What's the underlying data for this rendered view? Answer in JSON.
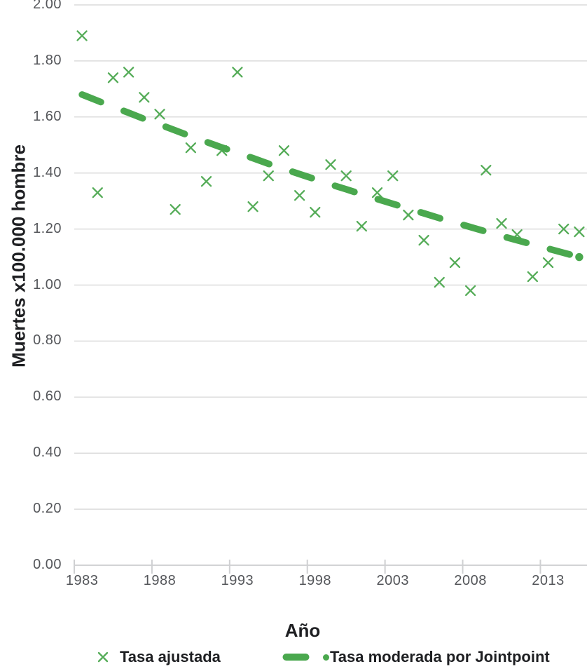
{
  "chart_data": {
    "type": "scatter",
    "title": "",
    "xlabel": "Año",
    "ylabel": "Muertes x100.000 hombre",
    "x": [
      1983,
      1984,
      1985,
      1986,
      1987,
      1988,
      1989,
      1990,
      1991,
      1992,
      1993,
      1994,
      1995,
      1996,
      1997,
      1998,
      1999,
      2000,
      2001,
      2002,
      2003,
      2004,
      2005,
      2006,
      2007,
      2008,
      2009,
      2010,
      2011,
      2012,
      2013,
      2014,
      2015
    ],
    "series": [
      {
        "name": "Tasa ajustada",
        "style": "x-marker",
        "values": [
          1.89,
          1.33,
          1.74,
          1.76,
          1.67,
          1.61,
          1.27,
          1.49,
          1.37,
          1.48,
          1.76,
          1.28,
          1.39,
          1.48,
          1.32,
          1.26,
          1.43,
          1.39,
          1.21,
          1.33,
          1.39,
          1.25,
          1.16,
          1.01,
          1.08,
          0.98,
          1.41,
          1.22,
          1.18,
          1.03,
          1.08,
          1.2,
          1.19
        ]
      },
      {
        "name": "Tasa moderada por Jointpoint",
        "style": "dashed-line-with-end-dot",
        "values": [
          1.68,
          1.658,
          1.636,
          1.615,
          1.593,
          1.573,
          1.552,
          1.531,
          1.511,
          1.491,
          1.472,
          1.453,
          1.433,
          1.415,
          1.396,
          1.378,
          1.359,
          1.342,
          1.324,
          1.307,
          1.29,
          1.273,
          1.256,
          1.239,
          1.223,
          1.207,
          1.191,
          1.175,
          1.16,
          1.145,
          1.13,
          1.115,
          1.1
        ]
      }
    ],
    "ylim": [
      0.0,
      2.0
    ],
    "ytick_labels": [
      "2.00",
      "1.80",
      "1.60",
      "1.40",
      "1.20",
      "1.00",
      "0.80",
      "0.60",
      "0.40",
      "0.20",
      "0.00"
    ],
    "xtick_years": [
      1983,
      1988,
      1993,
      1998,
      2003,
      2008,
      2013
    ],
    "xtick_labels": [
      "1983",
      "1988",
      "1993",
      "1998",
      "2003",
      "2008",
      "2013"
    ],
    "grid": true,
    "legend_position": "bottom"
  },
  "colors": {
    "marker_green": "#55ac58",
    "line_green": "#4aa84e",
    "grid_line": "#dcdcdc",
    "axis_line": "#d2d3d5",
    "tick_mark": "#cfd0d2",
    "tick_label": "#54565a",
    "title_text": "#1e1f22"
  },
  "icons": {
    "scatter_marker": "x-marker",
    "trend_marker": "dash-segment",
    "trend_end": "dot-marker"
  }
}
